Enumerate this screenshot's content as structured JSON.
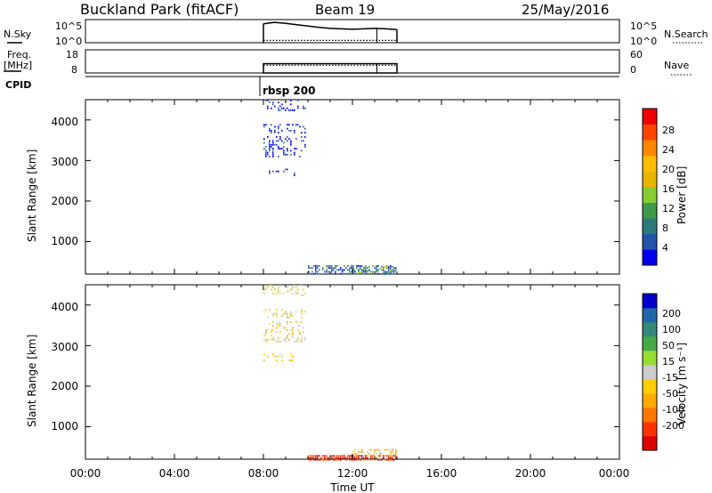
{
  "header": {
    "title": "Buckland Park (fitACF)",
    "beam": "Beam 19",
    "date": "25/May/2016"
  },
  "top_panels": {
    "nsky_label": "N.Sky",
    "nsky_ticks": [
      "10^5",
      "10^0"
    ],
    "nsearch_label": "N.Search",
    "freq_label_line1": "Freq.",
    "freq_label_line2": "[MHz]",
    "freq_ticks": [
      "18",
      "8"
    ],
    "nave_ticks": [
      "60",
      "0"
    ],
    "nave_label": "Nave",
    "cpid_label": "CPID",
    "cpid_value": "rbsp 200"
  },
  "x_axis": {
    "label": "Time UT",
    "ticks": [
      "00:00",
      "04:00",
      "08:00",
      "12:00",
      "16:00",
      "20:00",
      "00:00"
    ]
  },
  "power_panel": {
    "ylabel": "Slant Range [km]",
    "yticks": [
      "4000",
      "3000",
      "2000",
      "1000"
    ],
    "colorbar_label": "Power [dB]",
    "colorbar_ticks": [
      "28",
      "24",
      "20",
      "16",
      "12",
      "8",
      "4"
    ],
    "colors": [
      "#0000ee",
      "#2255aa",
      "#2b7a7a",
      "#3d9a4a",
      "#88cc33",
      "#e8b400",
      "#ffbb00",
      "#ff8800",
      "#ff4400",
      "#ee0000"
    ]
  },
  "velocity_panel": {
    "ylabel": "Slant Range [km]",
    "yticks": [
      "4000",
      "3000",
      "2000",
      "1000"
    ],
    "colorbar_label": "Velocity [m s⁻¹]",
    "colorbar_ticks": [
      "200",
      "100",
      "50",
      "15",
      "-15",
      "-50",
      "-100",
      "-200"
    ],
    "colors": [
      "#0000cc",
      "#2266aa",
      "#33887a",
      "#44aa44",
      "#99dd33",
      "#cccccc",
      "#ffcc00",
      "#ffaa00",
      "#ff7700",
      "#ff3300",
      "#dd0000"
    ]
  },
  "chart_data": [
    {
      "type": "line",
      "name": "N.Sky / N.Search",
      "x_unit": "hours UT",
      "xlim": [
        0,
        24
      ],
      "x": [
        8.0,
        8.5,
        9.0,
        9.5,
        10.0,
        10.5,
        11.0,
        11.5,
        12.0,
        12.5,
        13.0,
        13.5,
        14.0
      ],
      "values": [
        0.82,
        0.88,
        0.84,
        0.78,
        0.72,
        0.66,
        0.62,
        0.6,
        0.58,
        0.6,
        0.62,
        0.6,
        0.57
      ],
      "nsearch_level": 0.1
    },
    {
      "type": "line",
      "name": "Freq / Nave",
      "x_unit": "hours UT",
      "xlim": [
        0,
        24
      ],
      "x": [
        8.0,
        14.0
      ],
      "freq_values": [
        12.0,
        12.0
      ],
      "nave_values": [
        20,
        20
      ]
    },
    {
      "type": "heatmap",
      "name": "Power",
      "x_unit": "hours UT",
      "y_unit": "km",
      "xlim": [
        0,
        24
      ],
      "ylim": [
        200,
        4500
      ],
      "clim": [
        0,
        32
      ],
      "clusters": [
        {
          "x": [
            8.0,
            9.9
          ],
          "y": [
            4250,
            4500
          ],
          "value": 2,
          "density": 0.28
        },
        {
          "x": [
            8.0,
            9.9
          ],
          "y": [
            3700,
            3900
          ],
          "value": 2,
          "density": 0.22
        },
        {
          "x": [
            8.0,
            9.9
          ],
          "y": [
            3100,
            3600
          ],
          "value": 2,
          "density": 0.28
        },
        {
          "x": [
            8.0,
            9.4
          ],
          "y": [
            2650,
            2800
          ],
          "value": 2,
          "density": 0.15
        },
        {
          "x": [
            10.0,
            14.0
          ],
          "y": [
            200,
            420
          ],
          "value": 6,
          "density": 0.55
        },
        {
          "x": [
            12.0,
            14.0
          ],
          "y": [
            250,
            400
          ],
          "value": 12,
          "density": 0.45
        }
      ]
    },
    {
      "type": "heatmap",
      "name": "Velocity",
      "x_unit": "hours UT",
      "y_unit": "km",
      "xlim": [
        0,
        24
      ],
      "ylim": [
        200,
        4500
      ],
      "clim": [
        -250,
        250
      ],
      "clusters": [
        {
          "x": [
            8.0,
            9.9
          ],
          "y": [
            4250,
            4500
          ],
          "value": -30,
          "density": 0.28
        },
        {
          "x": [
            8.0,
            9.9
          ],
          "y": [
            3700,
            3900
          ],
          "value": -30,
          "density": 0.22
        },
        {
          "x": [
            8.0,
            9.9
          ],
          "y": [
            3100,
            3600
          ],
          "value": -30,
          "density": 0.28
        },
        {
          "x": [
            8.0,
            9.4
          ],
          "y": [
            2650,
            2800
          ],
          "value": -30,
          "density": 0.15
        },
        {
          "x": [
            10.0,
            14.0
          ],
          "y": [
            200,
            300
          ],
          "value": -200,
          "density": 0.8
        },
        {
          "x": [
            12.0,
            14.0
          ],
          "y": [
            280,
            450
          ],
          "value": -60,
          "density": 0.4
        }
      ]
    }
  ]
}
